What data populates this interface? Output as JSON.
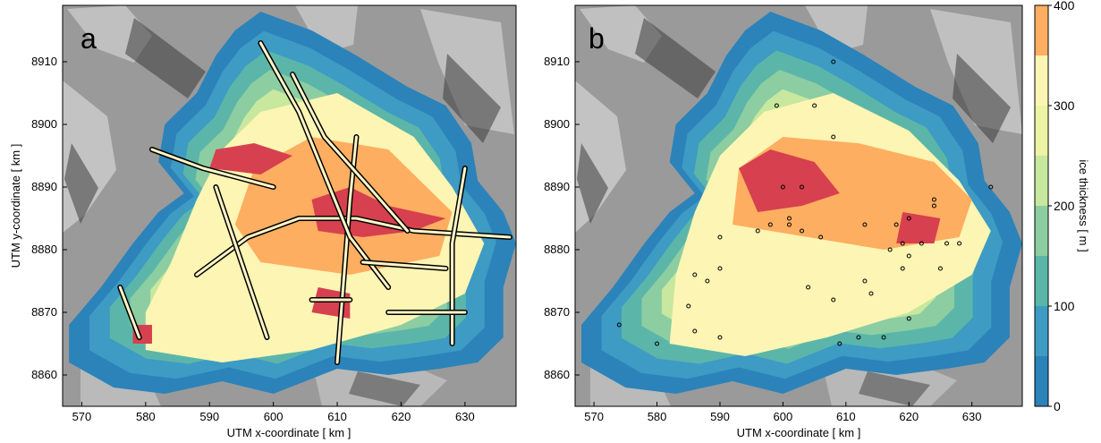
{
  "chart_data": [
    {
      "type": "heatmap",
      "panel_label": "a",
      "xlabel": "UTM x-coordinate [ km ]",
      "ylabel": "UTM y-coordinate [ km ]",
      "xlim": [
        567,
        638
      ],
      "ylim": [
        8855,
        8919
      ],
      "xticks": [
        570,
        580,
        590,
        600,
        610,
        620,
        630
      ],
      "yticks": [
        8860,
        8870,
        8880,
        8890,
        8900,
        8910
      ],
      "overlay": "measurement tracks",
      "ice_outline": [
        [
          575,
          8858
        ],
        [
          583,
          8857
        ],
        [
          592,
          8859
        ],
        [
          600,
          8857
        ],
        [
          610,
          8861
        ],
        [
          618,
          8860
        ],
        [
          626,
          8861
        ],
        [
          632,
          8862
        ],
        [
          636,
          8866
        ],
        [
          636,
          8874
        ],
        [
          638,
          8881
        ],
        [
          636,
          8886
        ],
        [
          632,
          8891
        ],
        [
          631,
          8897
        ],
        [
          627,
          8903
        ],
        [
          621,
          8906
        ],
        [
          613,
          8911
        ],
        [
          606,
          8915
        ],
        [
          598,
          8918
        ],
        [
          594,
          8915
        ],
        [
          591,
          8911
        ],
        [
          588,
          8905
        ],
        [
          583,
          8900
        ],
        [
          582,
          8894
        ],
        [
          586,
          8889
        ],
        [
          582,
          8886
        ],
        [
          578,
          8881
        ],
        [
          573,
          8874
        ],
        [
          568,
          8868
        ],
        [
          568,
          8862
        ]
      ],
      "thick_zones": [
        {
          "level": 300,
          "points": [
            [
              580,
              8864
            ],
            [
              592,
              8862
            ],
            [
              606,
              8864
            ],
            [
              620,
              8868
            ],
            [
              630,
              8873
            ],
            [
              633,
              8881
            ],
            [
              628,
              8890
            ],
            [
              622,
              8898
            ],
            [
              610,
              8905
            ],
            [
              598,
              8902
            ],
            [
              592,
              8896
            ],
            [
              588,
              8888
            ],
            [
              584,
              8878
            ],
            [
              580,
              8870
            ]
          ]
        },
        {
          "level": 350,
          "points": [
            [
              598,
              8878
            ],
            [
              612,
              8876
            ],
            [
              626,
              8879
            ],
            [
              628,
              8886
            ],
            [
              618,
              8896
            ],
            [
              606,
              8898
            ],
            [
              597,
              8893
            ],
            [
              594,
              8884
            ]
          ]
        },
        {
          "level": 400,
          "points": [
            [
              607,
              8883
            ],
            [
              614,
              8882
            ],
            [
              622,
              8883
            ],
            [
              627,
              8885
            ],
            [
              618,
              8887
            ],
            [
              612,
              8890
            ],
            [
              606,
              8888
            ]
          ]
        },
        {
          "level": 400,
          "points": [
            [
              590,
              8893
            ],
            [
              598,
              8892
            ],
            [
              603,
              8895
            ],
            [
              597,
              8897
            ],
            [
              591,
              8896
            ]
          ]
        },
        {
          "level": 400,
          "points": [
            [
              606,
              8870
            ],
            [
              612,
              8869
            ],
            [
              612,
              8873
            ],
            [
              607,
              8874
            ]
          ]
        },
        {
          "level": 400,
          "points": [
            [
              578,
              8865
            ],
            [
              581,
              8865
            ],
            [
              581,
              8868
            ],
            [
              578,
              8868
            ]
          ]
        }
      ],
      "tracks": [
        [
          [
            588,
            8876
          ],
          [
            596,
            8882
          ],
          [
            604,
            8885
          ],
          [
            613,
            8885
          ],
          [
            622,
            8883
          ],
          [
            637,
            8882
          ]
        ],
        [
          [
            610,
            8862
          ],
          [
            611,
            8875
          ],
          [
            612,
            8888
          ],
          [
            613,
            8898
          ]
        ],
        [
          [
            598,
            8913
          ],
          [
            604,
            8902
          ],
          [
            608,
            8892
          ],
          [
            612,
            8882
          ],
          [
            618,
            8874
          ]
        ],
        [
          [
            581,
            8896
          ],
          [
            589,
            8893
          ],
          [
            600,
            8890
          ]
        ],
        [
          [
            603,
            8908
          ],
          [
            608,
            8898
          ],
          [
            615,
            8890
          ],
          [
            621,
            8883
          ]
        ],
        [
          [
            628,
            8865
          ],
          [
            628,
            8881
          ],
          [
            630,
            8893
          ]
        ],
        [
          [
            591,
            8890
          ],
          [
            595,
            8878
          ],
          [
            599,
            8866
          ]
        ],
        [
          [
            576,
            8874
          ],
          [
            579,
            8866
          ]
        ],
        [
          [
            614,
            8878
          ],
          [
            627,
            8877
          ]
        ],
        [
          [
            606,
            8872
          ],
          [
            612,
            8872
          ]
        ],
        [
          [
            618,
            8870
          ],
          [
            630,
            8870
          ]
        ]
      ]
    },
    {
      "type": "heatmap",
      "panel_label": "b",
      "xlabel": "UTM x-coordinate [ km ]",
      "xlim": [
        567,
        638
      ],
      "ylim": [
        8855,
        8919
      ],
      "xticks": [
        570,
        580,
        590,
        600,
        610,
        620,
        630
      ],
      "yticks": [
        8860,
        8870,
        8880,
        8890,
        8900,
        8910
      ],
      "overlay": "point measurements",
      "ice_outline": [
        [
          575,
          8858
        ],
        [
          583,
          8857
        ],
        [
          592,
          8859
        ],
        [
          600,
          8857
        ],
        [
          610,
          8861
        ],
        [
          618,
          8860
        ],
        [
          626,
          8861
        ],
        [
          632,
          8862
        ],
        [
          636,
          8866
        ],
        [
          636,
          8874
        ],
        [
          638,
          8881
        ],
        [
          636,
          8886
        ],
        [
          632,
          8891
        ],
        [
          631,
          8897
        ],
        [
          627,
          8903
        ],
        [
          621,
          8906
        ],
        [
          613,
          8911
        ],
        [
          606,
          8915
        ],
        [
          598,
          8918
        ],
        [
          594,
          8915
        ],
        [
          591,
          8911
        ],
        [
          588,
          8905
        ],
        [
          583,
          8900
        ],
        [
          582,
          8894
        ],
        [
          586,
          8889
        ],
        [
          582,
          8886
        ],
        [
          578,
          8881
        ],
        [
          573,
          8874
        ],
        [
          568,
          8868
        ],
        [
          568,
          8862
        ]
      ],
      "thick_zones": [
        {
          "level": 300,
          "points": [
            [
              582,
              8865
            ],
            [
              594,
              8863
            ],
            [
              607,
              8866
            ],
            [
              620,
              8870
            ],
            [
              630,
              8876
            ],
            [
              633,
              8883
            ],
            [
              628,
              8891
            ],
            [
              620,
              8899
            ],
            [
              608,
              8905
            ],
            [
              597,
              8902
            ],
            [
              590,
              8895
            ],
            [
              586,
              8886
            ],
            [
              583,
              8876
            ]
          ]
        },
        {
          "level": 350,
          "points": [
            [
              592,
              8884
            ],
            [
              604,
              8882
            ],
            [
              616,
              8880
            ],
            [
              628,
              8882
            ],
            [
              630,
              8888
            ],
            [
              624,
              8894
            ],
            [
              612,
              8897
            ],
            [
              600,
              8898
            ],
            [
              593,
              8893
            ]
          ]
        },
        {
          "level": 400,
          "points": [
            [
              596,
              8886
            ],
            [
              603,
              8887
            ],
            [
              609,
              8889
            ],
            [
              605,
              8894
            ],
            [
              598,
              8896
            ],
            [
              593,
              8893
            ]
          ]
        },
        {
          "level": 400,
          "points": [
            [
              618,
              8881
            ],
            [
              624,
              8881
            ],
            [
              625,
              8885
            ],
            [
              619,
              8886
            ]
          ]
        }
      ],
      "points": [
        [
          599,
          8903
        ],
        [
          605,
          8903
        ],
        [
          608,
          8910
        ],
        [
          608,
          8898
        ],
        [
          600,
          8890
        ],
        [
          603,
          8890
        ],
        [
          601,
          8885
        ],
        [
          598,
          8884
        ],
        [
          601,
          8884
        ],
        [
          596,
          8883
        ],
        [
          603,
          8883
        ],
        [
          606,
          8882
        ],
        [
          613,
          8884
        ],
        [
          618,
          8884
        ],
        [
          620,
          8885
        ],
        [
          624,
          8887
        ],
        [
          624,
          8888
        ],
        [
          633,
          8890
        ],
        [
          617,
          8880
        ],
        [
          619,
          8881
        ],
        [
          622,
          8881
        ],
        [
          626,
          8881
        ],
        [
          628,
          8881
        ],
        [
          619,
          8877
        ],
        [
          620,
          8879
        ],
        [
          625,
          8877
        ],
        [
          590,
          8882
        ],
        [
          590,
          8877
        ],
        [
          588,
          8875
        ],
        [
          586,
          8876
        ],
        [
          585,
          8871
        ],
        [
          604,
          8874
        ],
        [
          614,
          8873
        ],
        [
          613,
          8875
        ],
        [
          608,
          8872
        ],
        [
          612,
          8866
        ],
        [
          620,
          8869
        ],
        [
          574,
          8868
        ],
        [
          580,
          8865
        ],
        [
          590,
          8866
        ],
        [
          609,
          8865
        ],
        [
          616,
          8866
        ],
        [
          586,
          8867
        ]
      ]
    }
  ],
  "colorbar": {
    "label": "ice thickness [ m ]",
    "range": [
      0,
      400
    ],
    "ticks": [
      0,
      100,
      200,
      300,
      400
    ],
    "levels": [
      {
        "from": 0,
        "to": 50,
        "color": "#2b83ba"
      },
      {
        "from": 50,
        "to": 100,
        "color": "#3d9bc4"
      },
      {
        "from": 100,
        "to": 150,
        "color": "#5bb6a9"
      },
      {
        "from": 150,
        "to": 200,
        "color": "#8ccda2"
      },
      {
        "from": 200,
        "to": 250,
        "color": "#c7e89e"
      },
      {
        "from": 250,
        "to": 300,
        "color": "#ecf3a4"
      },
      {
        "from": 300,
        "to": 350,
        "color": "#fdf5b3"
      },
      {
        "from": 350,
        "to": 400,
        "color": "#fdae61"
      },
      {
        "from": 400,
        "to": 450,
        "color": "#d7404f"
      }
    ]
  },
  "colors": {
    "background_terrain": "#9a9a9a",
    "ice_edge": "#3f8fbf",
    "track_outline": "#000000",
    "track_fill": "#fff6c8"
  }
}
